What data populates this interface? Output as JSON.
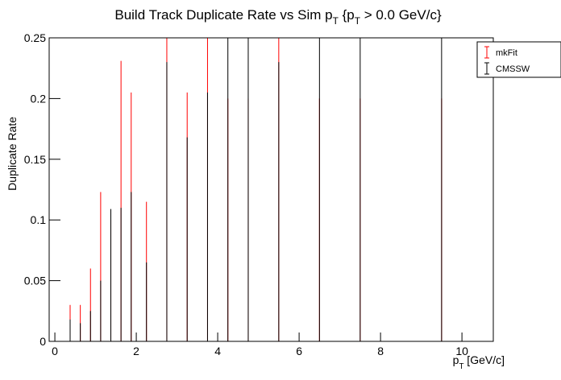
{
  "chart_data": {
    "type": "errorbar",
    "title": [
      "Build Track Duplicate Rate vs Sim p",
      "T",
      " {p",
      "T",
      " > 0.0 GeV/c}"
    ],
    "x_label": [
      "p",
      "T",
      " [GeV/c]"
    ],
    "y_label": "Duplicate Rate",
    "x": [
      0.375,
      0.625,
      0.875,
      1.125,
      1.375,
      1.625,
      1.875,
      2.25,
      2.75,
      3.25,
      3.75,
      4.25,
      4.75,
      5.5,
      6.5,
      7.5,
      9.5
    ],
    "series": [
      {
        "name": "mkFit",
        "color": "#ff0000",
        "values": [
          0.015,
          0.015,
          0.03,
          0.0615,
          0.05,
          0.1155,
          0.1025,
          0.0575,
          0.15,
          0.1025,
          0.15,
          0.1,
          0.1,
          0.15,
          0.1,
          0.1,
          0.1
        ],
        "errors": [
          0.015,
          0.015,
          0.03,
          0.0615,
          0.05,
          0.1155,
          0.1025,
          0.0575,
          0.15,
          0.1025,
          0.15,
          0.1,
          0.1,
          0.15,
          0.1,
          0.1,
          0.1
        ]
      },
      {
        "name": "CMSSW",
        "color": "#000000",
        "values": [
          0.009,
          0.0075,
          0.0125,
          0.025,
          0.0545,
          0.055,
          0.0615,
          0.0325,
          0.115,
          0.084,
          0.1025,
          0.15,
          0.15,
          0.115,
          0.15,
          0.15,
          0.15
        ],
        "errors": [
          0.009,
          0.0075,
          0.0125,
          0.025,
          0.0545,
          0.055,
          0.0615,
          0.0325,
          0.115,
          0.084,
          0.1025,
          0.15,
          0.15,
          0.115,
          0.15,
          0.15,
          0.15
        ]
      }
    ],
    "xlim": [
      -0.14,
      10.77
    ],
    "xticks": [
      0,
      2,
      4,
      6,
      8,
      10
    ],
    "ylim": [
      0,
      0.25
    ],
    "yticks": [
      0,
      0.05,
      0.1,
      0.15,
      0.2,
      0.25
    ],
    "legend": "upper right",
    "grid": false
  }
}
